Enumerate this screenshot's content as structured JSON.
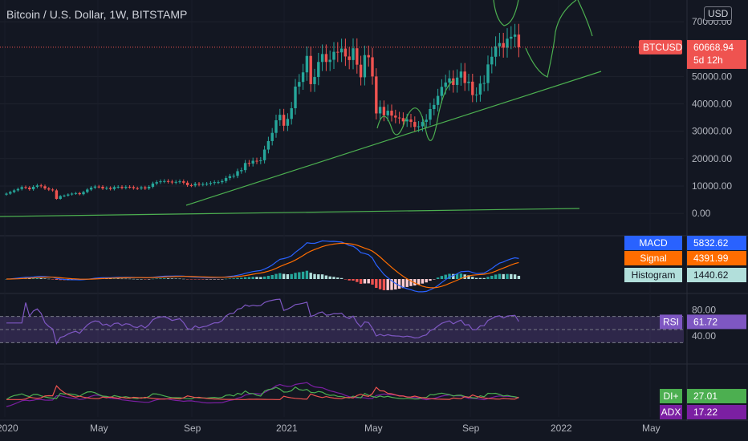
{
  "header": {
    "title": "Bitcoin / U.S. Dollar, 1W, BITSTAMP",
    "currency": "USD"
  },
  "colors": {
    "background": "#131722",
    "up": "#26a69a",
    "down": "#ef5350",
    "drawing": "#4caf50",
    "macd": "#2962ff",
    "signal": "#ff6d00",
    "rsi": "#7e57c2",
    "di_plus": "#4caf50",
    "di_minus": "#ef5350",
    "adx": "#7b1fa2"
  },
  "price_badge": {
    "symbol": "BTCUSD",
    "price": "60668.94",
    "countdown": "5d 12h"
  },
  "chart_data": [
    {
      "type": "candlestick",
      "title": "Bitcoin / U.S. Dollar, 1W, BITSTAMP",
      "x_tick_labels": [
        "2020",
        "May",
        "Sep",
        "2021",
        "May",
        "Sep",
        "2022",
        "May"
      ],
      "y_tick_labels": [
        "0.00",
        "10000.00",
        "20000.00",
        "30000.00",
        "40000.00",
        "50000.00",
        "70000.00"
      ],
      "ylim": [
        -7000,
        75000
      ],
      "last_price": 60668.94,
      "close_series": [
        7200,
        7800,
        8400,
        8900,
        9600,
        9400,
        8800,
        9700,
        10200,
        9900,
        9100,
        8700,
        8400,
        5300,
        6300,
        6500,
        6900,
        7200,
        7400,
        7000,
        7800,
        8700,
        9400,
        9800,
        9700,
        9100,
        9300,
        8900,
        9600,
        9700,
        9300,
        9700,
        9600,
        9200,
        9100,
        9500,
        9100,
        9700,
        10900,
        11400,
        11700,
        11800,
        11600,
        11300,
        11500,
        11700,
        11200,
        10300,
        10200,
        10800,
        10500,
        10700,
        10800,
        11100,
        11400,
        11400,
        11800,
        12900,
        13600,
        13700,
        15400,
        15800,
        18400,
        18200,
        19200,
        19100,
        19400,
        23300,
        26400,
        29400,
        34000,
        36000,
        32000,
        34500,
        38400,
        46300,
        48000,
        51500,
        57500,
        47200,
        49800,
        55300,
        58200,
        55300,
        56100,
        59000,
        58800,
        60200,
        57300,
        56000,
        60300,
        54300,
        49700,
        57800,
        57000,
        50000,
        36500,
        38900,
        35800,
        37500,
        35700,
        35000,
        34800,
        33600,
        34300,
        33400,
        31600,
        31800,
        33400,
        34200,
        38100,
        39600,
        42900,
        46200,
        47800,
        49300,
        46900,
        49600,
        51800,
        47600,
        48100,
        43200,
        43400,
        47400,
        47600,
        54400,
        57200,
        61000,
        62200,
        60500,
        63800,
        64500,
        65300,
        60668.94
      ],
      "drawn_trendlines": 3,
      "drawn_curves": 4
    },
    {
      "type": "line",
      "indicator": "MACD",
      "series": [
        {
          "name": "MACD",
          "last": 5832.62
        },
        {
          "name": "Signal",
          "last": 4391.99
        },
        {
          "name": "Histogram",
          "last": 1440.62
        }
      ]
    },
    {
      "type": "line",
      "indicator": "RSI",
      "y_tick_labels": [
        "80.00",
        "40.00"
      ],
      "band": [
        30,
        70
      ],
      "series": [
        {
          "name": "RSI",
          "last": 61.72
        }
      ]
    },
    {
      "type": "line",
      "indicator": "DMI",
      "series": [
        {
          "name": "DI+",
          "last": 27.01
        },
        {
          "name": "ADX",
          "last": 17.22
        }
      ]
    }
  ]
}
